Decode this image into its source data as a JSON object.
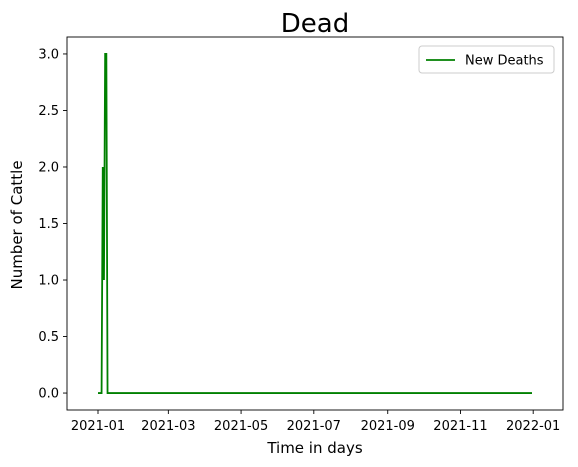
{
  "chart_data": {
    "type": "line",
    "title": "Dead",
    "xlabel": "Time in days",
    "ylabel": "Number of Cattle",
    "x_tick_labels": [
      "2021-01",
      "2021-03",
      "2021-05",
      "2021-07",
      "2021-09",
      "2021-11",
      "2022-01"
    ],
    "x_tick_dates": [
      "2021-01-01",
      "2021-03-01",
      "2021-05-01",
      "2021-07-01",
      "2021-09-01",
      "2021-11-01",
      "2022-01-01"
    ],
    "y_tick_labels": [
      "0.0",
      "0.5",
      "1.0",
      "1.5",
      "2.0",
      "2.5",
      "3.0"
    ],
    "y_ticks": [
      0,
      0.5,
      1.0,
      1.5,
      2.0,
      2.5,
      3.0
    ],
    "xlim": [
      "2020-12-06",
      "2022-01-26"
    ],
    "ylim": [
      -0.15,
      3.15
    ],
    "legend_position": "top-right",
    "series": [
      {
        "name": "New Deaths",
        "color": "#008000",
        "x": [
          "2021-01-01",
          "2021-01-03",
          "2021-01-04",
          "2021-01-05",
          "2021-01-06",
          "2021-01-07",
          "2021-01-08",
          "2021-01-09",
          "2021-01-10",
          "2021-01-31",
          "2021-06-30",
          "2021-12-31"
        ],
        "values": [
          0,
          0,
          0,
          2,
          1,
          3,
          3,
          0,
          0,
          0,
          0,
          0
        ]
      }
    ]
  }
}
